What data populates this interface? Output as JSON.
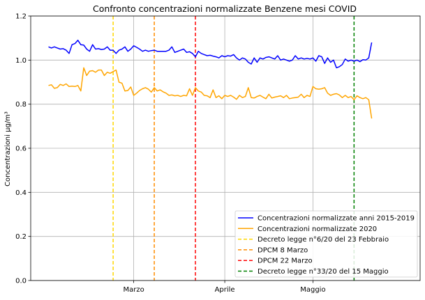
{
  "chart_data": {
    "type": "line",
    "title": "Confronto concentrazioni normalizzate Benzene mesi COVID",
    "xlabel": "",
    "ylabel": "Concentrazioni μg/m³",
    "ylim": [
      0.0,
      1.2
    ],
    "yticks": [
      "0.0",
      "0.2",
      "0.4",
      "0.6",
      "0.8",
      "1.0",
      "1.2"
    ],
    "x_start": "2020-02-01",
    "xticks": [
      {
        "date": "2020-03-01",
        "label": "Marzo"
      },
      {
        "date": "2020-04-01",
        "label": "Aprile"
      },
      {
        "date": "2020-05-01",
        "label": "Maggio"
      }
    ],
    "grid": true,
    "legend_position": "lower right",
    "series": [
      {
        "name": "Concentrazioni normalizzate anni 2015-2019",
        "color": "#0000ff",
        "values": [
          1.06,
          1.055,
          1.06,
          1.055,
          1.05,
          1.052,
          1.045,
          1.03,
          1.07,
          1.075,
          1.09,
          1.07,
          1.068,
          1.05,
          1.04,
          1.07,
          1.05,
          1.052,
          1.048,
          1.05,
          1.06,
          1.045,
          1.045,
          1.03,
          1.045,
          1.05,
          1.06,
          1.04,
          1.05,
          1.065,
          1.058,
          1.05,
          1.04,
          1.045,
          1.04,
          1.043,
          1.045,
          1.04,
          1.04,
          1.04,
          1.04,
          1.045,
          1.06,
          1.035,
          1.04,
          1.045,
          1.05,
          1.035,
          1.038,
          1.03,
          1.015,
          1.04,
          1.03,
          1.025,
          1.02,
          1.022,
          1.018,
          1.015,
          1.01,
          1.02,
          1.015,
          1.02,
          1.018,
          1.025,
          1.01,
          1.0,
          1.01,
          1.005,
          0.99,
          0.982,
          1.01,
          0.99,
          1.01,
          1.005,
          1.012,
          1.015,
          1.01,
          1.005,
          1.02,
          1.0,
          1.005,
          1.0,
          0.995,
          1.0,
          1.02,
          1.005,
          1.01,
          1.005,
          1.008,
          1.005,
          1.01,
          0.995,
          1.02,
          1.015,
          0.985,
          1.01,
          0.99,
          1.0,
          0.965,
          0.97,
          0.98,
          1.005,
          0.995,
          1.0,
          0.995,
          1.0,
          0.993,
          1.002,
          1.0,
          1.01,
          1.08
        ]
      },
      {
        "name": "Concentrazioni normalizzate 2020",
        "color": "#ffa500",
        "values": [
          0.885,
          0.888,
          0.872,
          0.875,
          0.89,
          0.885,
          0.892,
          0.88,
          0.882,
          0.88,
          0.885,
          0.86,
          0.965,
          0.93,
          0.95,
          0.952,
          0.945,
          0.955,
          0.955,
          0.93,
          0.945,
          0.94,
          0.948,
          0.955,
          0.9,
          0.895,
          0.86,
          0.862,
          0.878,
          0.84,
          0.85,
          0.862,
          0.87,
          0.875,
          0.868,
          0.855,
          0.875,
          0.86,
          0.865,
          0.856,
          0.85,
          0.84,
          0.842,
          0.838,
          0.84,
          0.835,
          0.84,
          0.838,
          0.87,
          0.84,
          0.875,
          0.86,
          0.855,
          0.84,
          0.838,
          0.83,
          0.865,
          0.83,
          0.838,
          0.825,
          0.84,
          0.835,
          0.84,
          0.832,
          0.822,
          0.84,
          0.83,
          0.835,
          0.875,
          0.83,
          0.828,
          0.835,
          0.84,
          0.832,
          0.825,
          0.845,
          0.828,
          0.832,
          0.835,
          0.838,
          0.83,
          0.84,
          0.825,
          0.828,
          0.83,
          0.832,
          0.845,
          0.83,
          0.84,
          0.835,
          0.88,
          0.87,
          0.868,
          0.87,
          0.875,
          0.85,
          0.84,
          0.845,
          0.848,
          0.842,
          0.83,
          0.84,
          0.83,
          0.835,
          0.82,
          0.838,
          0.83,
          0.825,
          0.83,
          0.82,
          0.735
        ]
      }
    ],
    "vlines": [
      {
        "name": "Decreto legge n°6/20 del 23 Febbraio",
        "date": "2020-02-23",
        "color": "#ffd700"
      },
      {
        "name": "DPCM 8 Marzo",
        "date": "2020-03-08",
        "color": "#ff8c00"
      },
      {
        "name": "DPCM 22 Marzo",
        "date": "2020-03-22",
        "color": "#ff0000"
      },
      {
        "name": "Decreto legge n°33/20 del 15 Maggio",
        "date": "2020-05-15",
        "color": "#008000"
      }
    ]
  }
}
